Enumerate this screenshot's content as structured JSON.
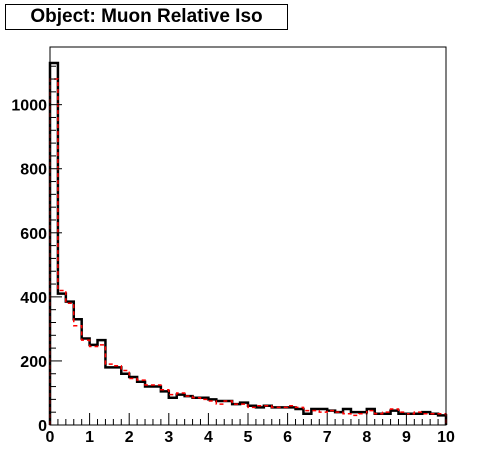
{
  "chart_data": {
    "type": "line",
    "title": "Object: Muon Relative Iso",
    "xlabel": "",
    "ylabel": "",
    "xlim": [
      0,
      10
    ],
    "ylim": [
      0,
      1180
    ],
    "grid": false,
    "xticks": [
      "0",
      "1",
      "2",
      "3",
      "4",
      "5",
      "6",
      "7",
      "8",
      "9",
      "10"
    ],
    "yticks": [
      "0",
      "200",
      "400",
      "600",
      "800",
      "1000"
    ],
    "bin_width": 0.2,
    "series": [
      {
        "style": "solid-step",
        "color": "#000000",
        "values": [
          1130,
          410,
          385,
          330,
          270,
          250,
          265,
          180,
          180,
          160,
          150,
          135,
          120,
          120,
          105,
          85,
          95,
          90,
          85,
          85,
          80,
          75,
          75,
          65,
          70,
          60,
          55,
          60,
          55,
          55,
          55,
          50,
          35,
          50,
          50,
          45,
          40,
          50,
          40,
          40,
          50,
          35,
          35,
          45,
          35,
          35,
          35,
          40,
          35,
          30
        ]
      },
      {
        "style": "dashed-step",
        "color": "#ff0000",
        "values": [
          1080,
          420,
          380,
          310,
          265,
          245,
          250,
          190,
          185,
          170,
          145,
          140,
          125,
          125,
          110,
          95,
          100,
          90,
          85,
          80,
          75,
          65,
          75,
          65,
          65,
          55,
          60,
          60,
          55,
          55,
          60,
          55,
          45,
          45,
          40,
          45,
          40,
          35,
          30,
          35,
          45,
          35,
          40,
          50,
          40,
          35,
          40,
          35,
          35,
          35
        ]
      }
    ]
  }
}
